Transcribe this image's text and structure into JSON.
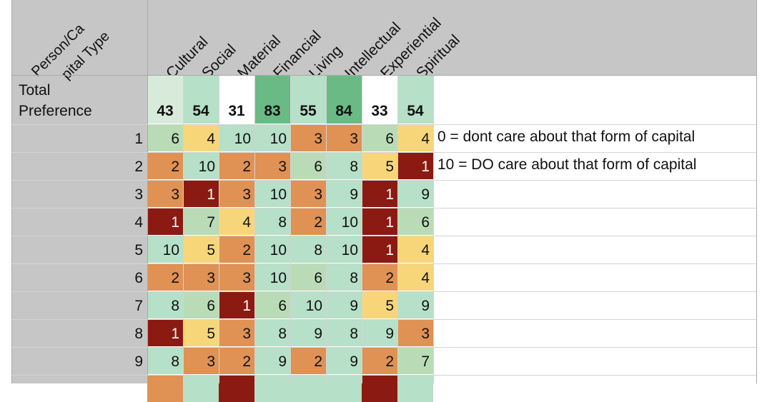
{
  "header": {
    "corner_line1": "Person/Ca",
    "corner_line2": "pital Type",
    "columns": [
      "Cultural",
      "Social",
      "Material",
      "Financial",
      "Living",
      "Intellectual",
      "Experiential",
      "Spiritual"
    ]
  },
  "total_row": {
    "label_line1": "Total",
    "label_line2": "Preference",
    "values": [
      "43",
      "54",
      "31",
      "83",
      "55",
      "84",
      "33",
      "54"
    ]
  },
  "rows": [
    {
      "id": "1",
      "values": [
        "6",
        "4",
        "10",
        "10",
        "3",
        "3",
        "6",
        "4"
      ]
    },
    {
      "id": "2",
      "values": [
        "2",
        "10",
        "2",
        "3",
        "6",
        "8",
        "5",
        "1"
      ]
    },
    {
      "id": "3",
      "values": [
        "3",
        "1",
        "3",
        "10",
        "3",
        "9",
        "1",
        "9"
      ]
    },
    {
      "id": "4",
      "values": [
        "1",
        "7",
        "4",
        "8",
        "2",
        "10",
        "1",
        "6"
      ]
    },
    {
      "id": "5",
      "values": [
        "10",
        "5",
        "2",
        "10",
        "8",
        "10",
        "1",
        "4"
      ]
    },
    {
      "id": "6",
      "values": [
        "2",
        "3",
        "3",
        "10",
        "6",
        "8",
        "2",
        "4"
      ]
    },
    {
      "id": "7",
      "values": [
        "8",
        "6",
        "1",
        "6",
        "10",
        "9",
        "5",
        "9"
      ]
    },
    {
      "id": "8",
      "values": [
        "1",
        "5",
        "3",
        "8",
        "9",
        "8",
        "9",
        "3"
      ]
    },
    {
      "id": "9",
      "values": [
        "8",
        "3",
        "2",
        "9",
        "2",
        "9",
        "2",
        "7"
      ]
    }
  ],
  "notes": {
    "note_0": "0 = dont care about that form of capital",
    "note_10": "10 = DO care about that form of capital"
  },
  "colors": {
    "v1": "#8b1a12",
    "v2": "#e09154",
    "v3": "#e09154",
    "v4": "#f7d67a",
    "v5": "#f7d67a",
    "v6": "#b9dcb6",
    "v7": "#b9dcb6",
    "v8": "#b6e0c7",
    "v9": "#b6e0c7",
    "v10": "#b6e0c7",
    "header_gray": "#c6c6c6"
  },
  "total_colors": [
    "#d8ebdb",
    "#b6e0c7",
    "#ffffff",
    "#6aba86",
    "#b6e0c7",
    "#6aba86",
    "#ffffff",
    "#b6e0c7"
  ]
}
